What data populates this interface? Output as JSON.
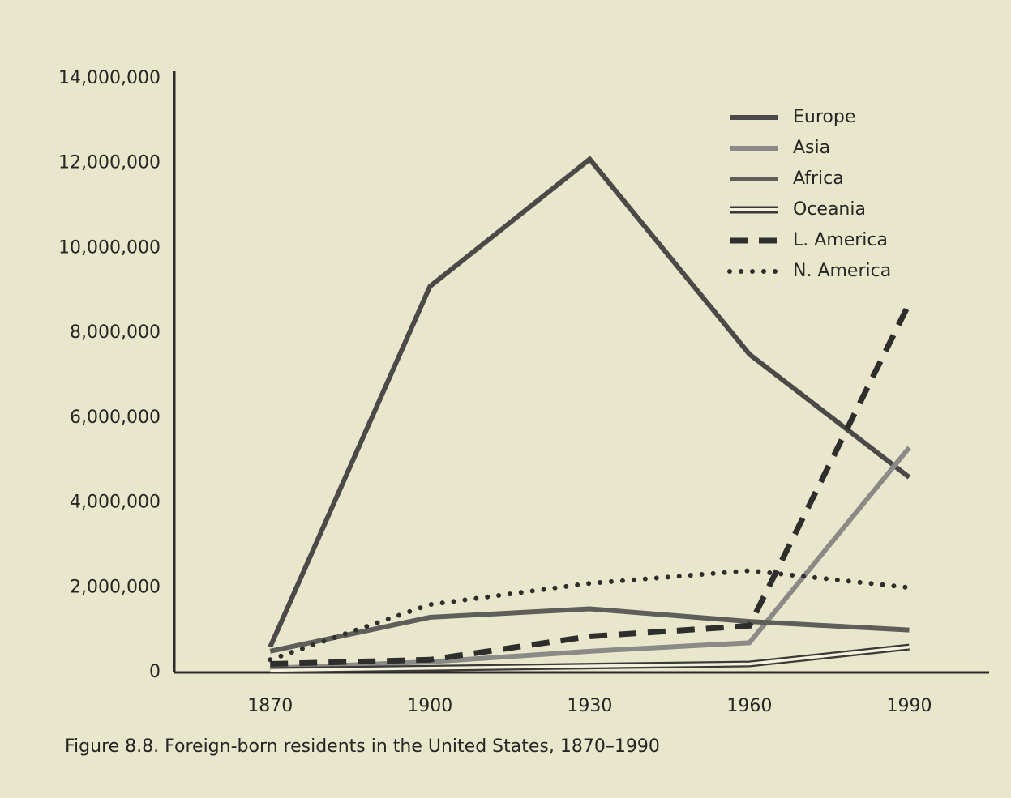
{
  "chart_data": {
    "type": "line",
    "title": "Figure 8.8. Foreign-born residents in the United States, 1870–1990",
    "x": [
      1870,
      1900,
      1930,
      1960,
      1990
    ],
    "xlim": [
      1852,
      2005
    ],
    "xticks": [
      1870,
      1900,
      1930,
      1960,
      1990
    ],
    "ylim": [
      0,
      14000000
    ],
    "yticks": [
      0,
      {
        "value": 2000000,
        "label": "2,000,000"
      },
      {
        "value": 4000000,
        "label": "4,000,000"
      },
      {
        "value": 6000000,
        "label": "6,000,000"
      },
      {
        "value": 8000000,
        "label": "8,000,000"
      },
      {
        "value": 10000000,
        "label": "10,000,000"
      },
      {
        "value": 12000000,
        "label": "12,000,000"
      },
      {
        "value": 14000000,
        "label": "14,000,000"
      }
    ],
    "grid": false,
    "legend": "top-right",
    "series": [
      {
        "name": "Europe",
        "color": "#4a4a48",
        "style": "solid",
        "values": [
          600000,
          9100000,
          12100000,
          7500000,
          4600000
        ]
      },
      {
        "name": "Asia",
        "color": "#8a8a86",
        "style": "solid",
        "values": [
          100000,
          250000,
          500000,
          700000,
          5300000
        ]
      },
      {
        "name": "Africa",
        "color": "#5e5e5a",
        "style": "solid",
        "values": [
          500000,
          1300000,
          1500000,
          1200000,
          1000000
        ]
      },
      {
        "name": "Oceania",
        "color": "#3a3a38",
        "style": "double",
        "values": [
          50000,
          100000,
          150000,
          200000,
          600000
        ]
      },
      {
        "name": "L. America",
        "color": "#2e2e2c",
        "style": "dashed",
        "values": [
          200000,
          300000,
          850000,
          1100000,
          8700000
        ]
      },
      {
        "name": "N. America",
        "color": "#2e2e2c",
        "style": "dotted",
        "values": [
          300000,
          1600000,
          2100000,
          2400000,
          2000000
        ]
      }
    ]
  }
}
